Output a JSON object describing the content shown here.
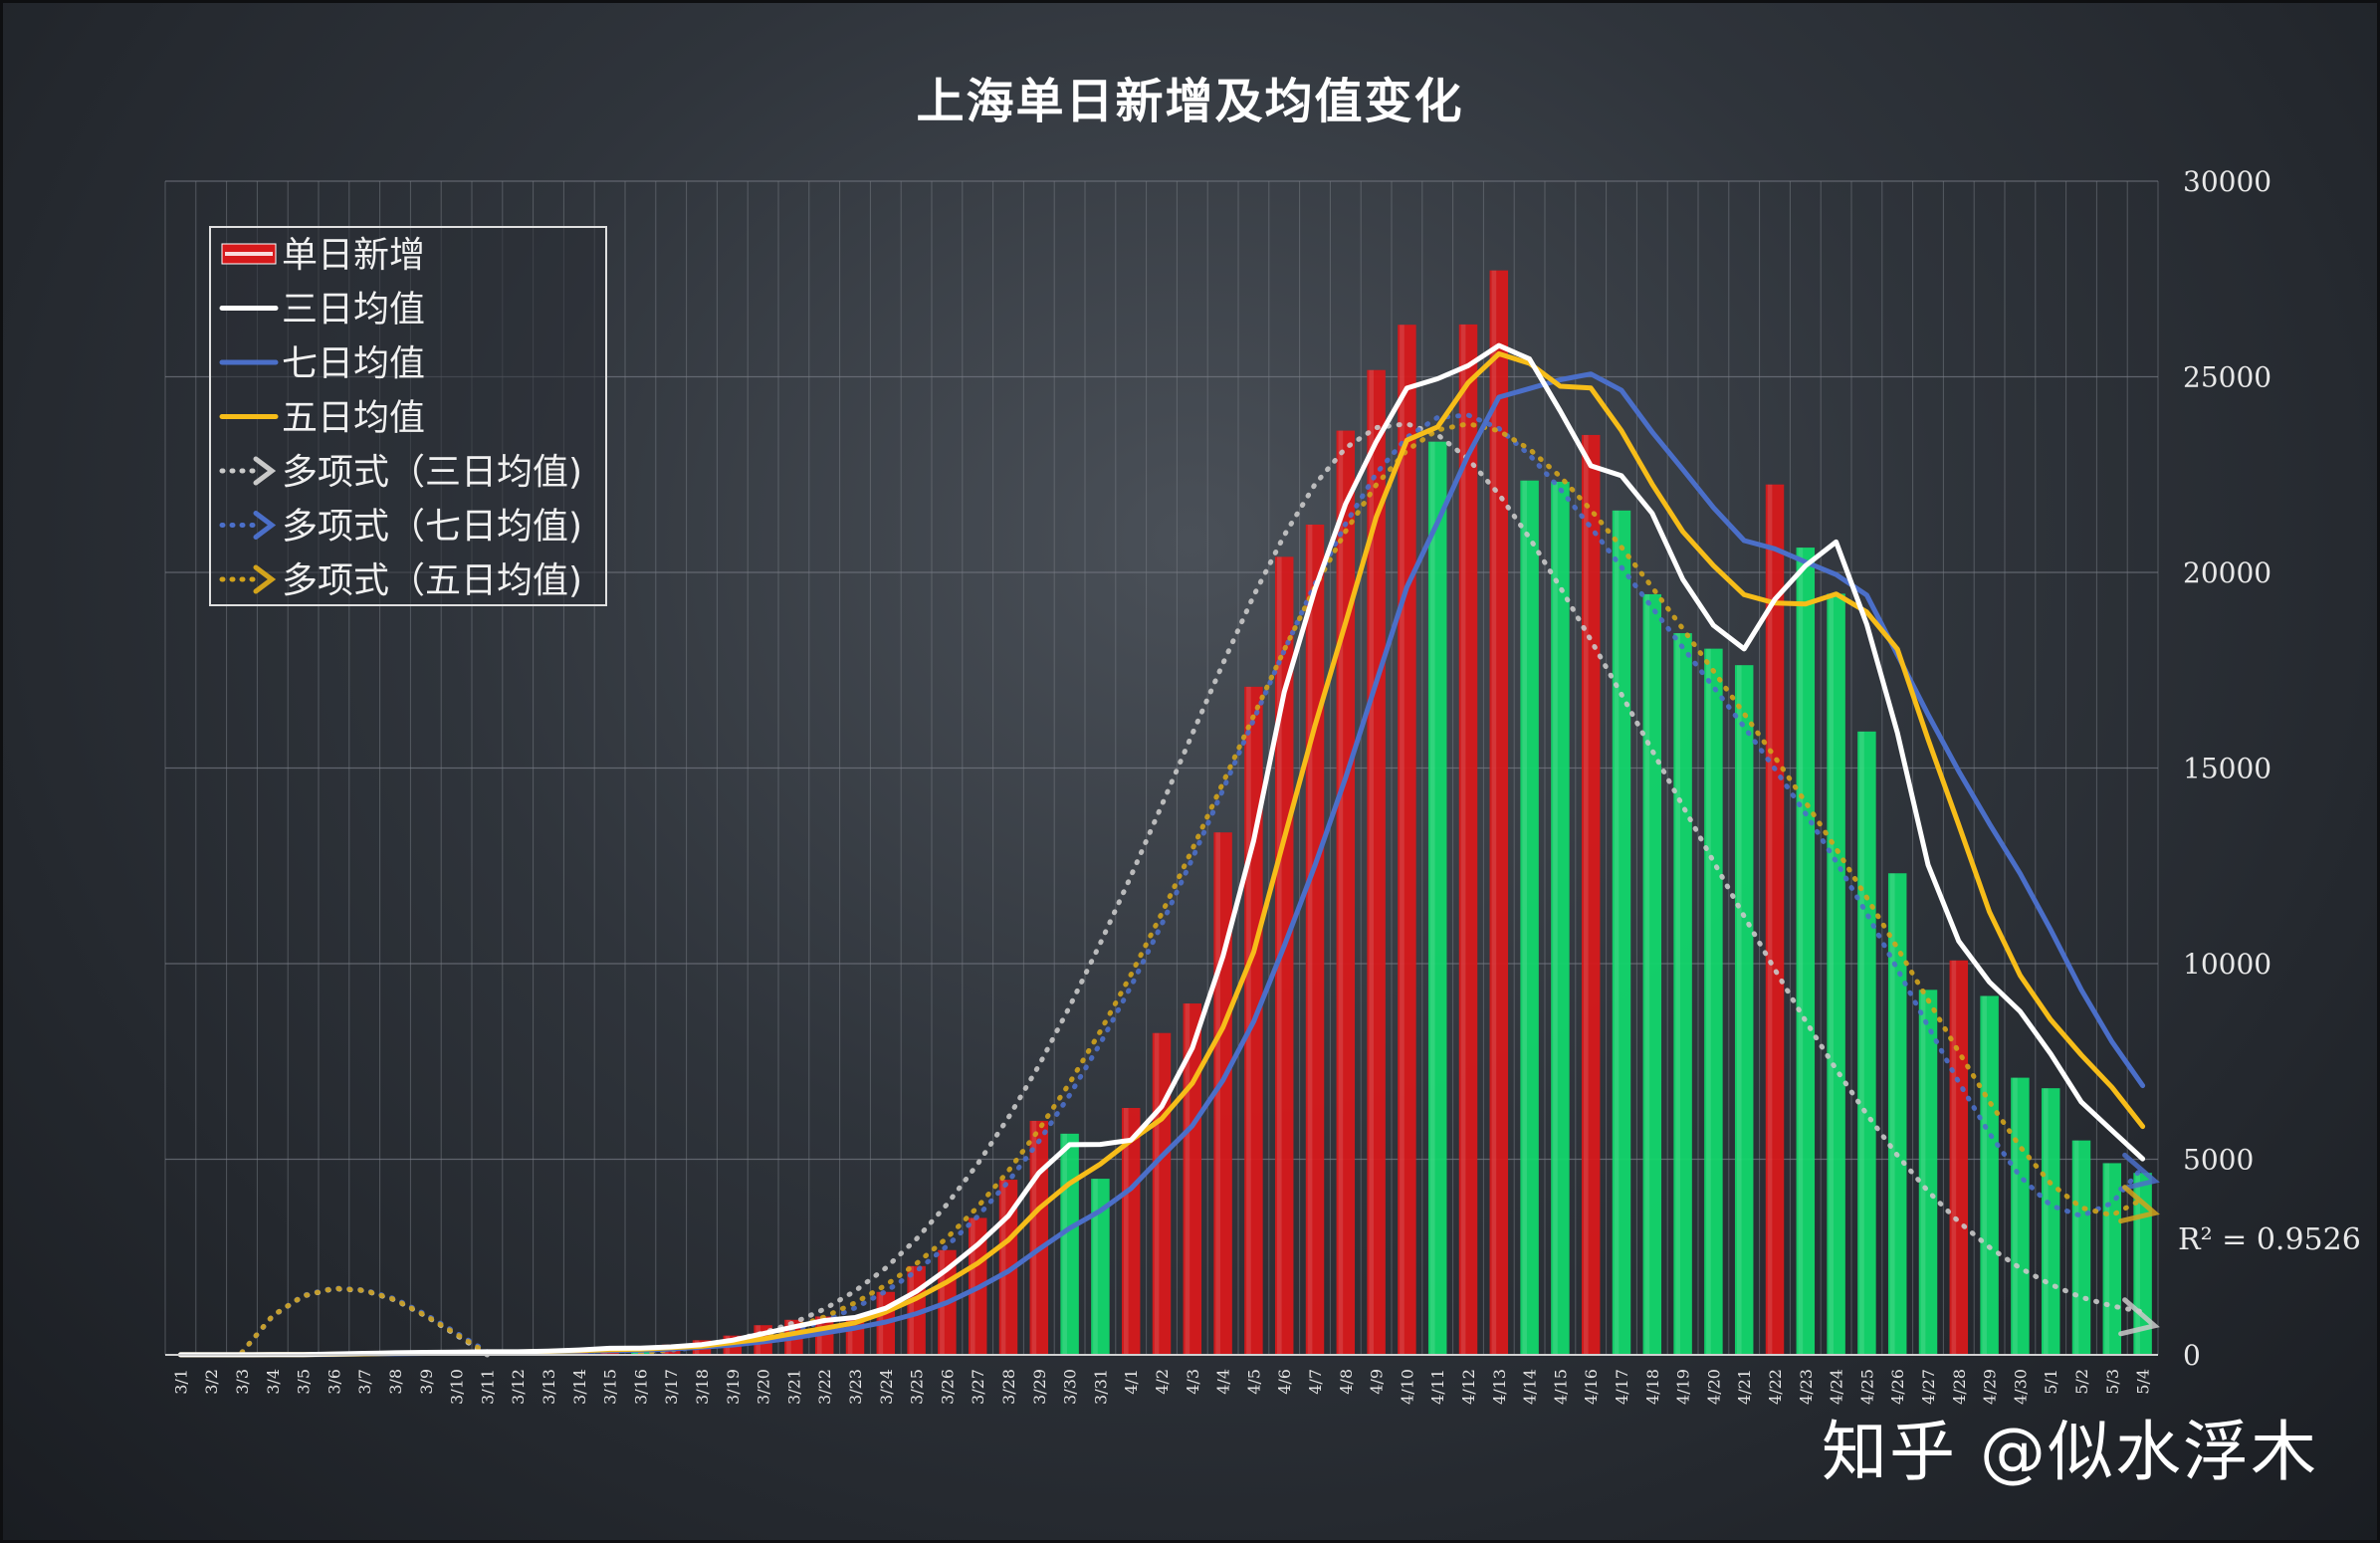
{
  "title": "上海单日新增及均值变化",
  "watermark": "知乎 @似水浮木",
  "r_squared": "R² = 0.9526",
  "colors": {
    "bar_up": "#d7191b",
    "bar_down": "#12d66b",
    "avg3": "#ffffff",
    "avg7": "#4b6fc9",
    "avg5": "#f7bd19",
    "poly3": "#c9c9c9",
    "poly7": "#4b6fc9",
    "poly5": "#d2a31c",
    "grid": "#767b84"
  },
  "legend": [
    {
      "label": "单日新增",
      "kind": "bar",
      "color": "#d7191b"
    },
    {
      "label": "三日均值",
      "kind": "line",
      "color": "#ffffff"
    },
    {
      "label": "七日均值",
      "kind": "line",
      "color": "#4b6fc9"
    },
    {
      "label": "五日均值",
      "kind": "line",
      "color": "#f7bd19"
    },
    {
      "label": "多项式（三日均值)",
      "kind": "dotted",
      "color": "#c9c9c9"
    },
    {
      "label": "多项式（七日均值)",
      "kind": "dotted",
      "color": "#4b6fc9"
    },
    {
      "label": "多项式（五日均值)",
      "kind": "dotted",
      "color": "#d2a31c"
    }
  ],
  "chart_data": {
    "type": "bar",
    "title": "上海单日新增及均值变化",
    "xlabel": "",
    "ylabel": "",
    "ylim": [
      0,
      30000
    ],
    "yticks": [
      0,
      5000,
      10000,
      15000,
      20000,
      25000,
      30000
    ],
    "y_axis_side": "right",
    "grid": true,
    "legend_position": "top-left",
    "categories": [
      "3/1",
      "3/2",
      "3/3",
      "3/4",
      "3/5",
      "3/6",
      "3/7",
      "3/8",
      "3/9",
      "3/10",
      "3/11",
      "3/12",
      "3/13",
      "3/14",
      "3/15",
      "3/16",
      "3/17",
      "3/18",
      "3/19",
      "3/20",
      "3/21",
      "3/22",
      "3/23",
      "3/24",
      "3/25",
      "3/26",
      "3/27",
      "3/28",
      "3/29",
      "3/30",
      "3/31",
      "4/1",
      "4/2",
      "4/3",
      "4/4",
      "4/5",
      "4/6",
      "4/7",
      "4/8",
      "4/9",
      "4/10",
      "4/11",
      "4/12",
      "4/13",
      "4/14",
      "4/15",
      "4/16",
      "4/17",
      "4/18",
      "4/19",
      "4/20",
      "4/21",
      "4/22",
      "4/23",
      "4/24",
      "4/25",
      "4/26",
      "4/27",
      "4/28",
      "4/29",
      "4/30",
      "5/1",
      "5/2",
      "5/3",
      "5/4"
    ],
    "series": [
      {
        "name": "单日新增",
        "type": "bar",
        "values": [
          2,
          3,
          3,
          5,
          16,
          45,
          55,
          62,
          76,
          75,
          83,
          76,
          130,
          169,
          202,
          150,
          260,
          374,
          492,
          758,
          896,
          981,
          983,
          1609,
          2269,
          2678,
          3500,
          4477,
          5982,
          5653,
          4502,
          6311,
          8226,
          8981,
          13354,
          17077,
          20398,
          21222,
          23624,
          25173,
          26330,
          23342,
          26338,
          27719,
          22348,
          22317,
          23513,
          21582,
          19442,
          18446,
          18050,
          17629,
          22247,
          20634,
          19455,
          15933,
          12309,
          9330,
          10082,
          9174,
          7084,
          6815,
          5480,
          4900,
          4651
        ],
        "colors_by_trend": "red when greater than previous day, green when lower"
      },
      {
        "name": "三日均值",
        "type": "line",
        "values": [
          3,
          3,
          3,
          4,
          8,
          22,
          39,
          54,
          64,
          71,
          78,
          78,
          96,
          125,
          167,
          174,
          204,
          261,
          375,
          541,
          715,
          878,
          953,
          1191,
          1620,
          2185,
          2816,
          3552,
          4653,
          5371,
          5379,
          5489,
          6346,
          7839,
          10187,
          13137,
          16943,
          19566,
          21748,
          23340,
          24709,
          24948,
          25284,
          25800,
          25456,
          24128,
          22726,
          22471,
          21512,
          19823,
          18646,
          18042,
          19309,
          20170,
          20779,
          18674,
          15899,
          12524,
          10574,
          9529,
          8780,
          7691,
          6460,
          5732,
          5010
        ]
      },
      {
        "name": "七日均值",
        "type": "line",
        "values": [
          2,
          2,
          3,
          4,
          5,
          10,
          18,
          27,
          38,
          48,
          58,
          67,
          79,
          91,
          106,
          119,
          150,
          196,
          252,
          334,
          435,
          559,
          684,
          840,
          1054,
          1335,
          1711,
          2138,
          2700,
          3236,
          3681,
          4253,
          5071,
          5854,
          7019,
          8513,
          10454,
          12510,
          14751,
          17191,
          19626,
          21279,
          23003,
          24478,
          24699,
          24924,
          25071,
          24655,
          23591,
          22631,
          21657,
          20815,
          20604,
          20268,
          19945,
          19421,
          17893,
          16367,
          14918,
          13577,
          12305,
          10862,
          9329,
          8000,
          6880
        ]
      },
      {
        "name": "五日均值",
        "type": "line",
        "values": [
          2,
          2,
          3,
          4,
          6,
          14,
          25,
          37,
          51,
          63,
          70,
          74,
          88,
          107,
          132,
          145,
          182,
          221,
          316,
          407,
          544,
          680,
          819,
          1095,
          1446,
          1862,
          2340,
          2934,
          3741,
          4384,
          4876,
          5484,
          6034,
          6938,
          8367,
          10290,
          13202,
          16079,
          18713,
          21414,
          23379,
          23718,
          24849,
          25589,
          25344,
          24757,
          24712,
          23622,
          22256,
          21044,
          20174,
          19429,
          19216,
          19194,
          19447,
          18987,
          18039,
          15733,
          13547,
          11325,
          9702,
          8564,
          7664,
          6838,
          5836
        ]
      },
      {
        "name": "多项式（三日均值)",
        "type": "poly_trend",
        "values": [
          -4800,
          -1470,
          60,
          990,
          1500,
          1690,
          1640,
          1400,
          990,
          500,
          0,
          -250,
          -280,
          -190,
          -60,
          50,
          150,
          250,
          380,
          560,
          820,
          1170,
          1630,
          2220,
          2960,
          3850,
          4880,
          6060,
          7400,
          8900,
          10520,
          12240,
          14040,
          15870,
          17670,
          19400,
          20950,
          22250,
          23180,
          23700,
          23800,
          23520,
          22900,
          22000,
          20880,
          19620,
          18270,
          16880,
          15450,
          14030,
          12610,
          11210,
          9850,
          8540,
          7300,
          6150,
          5100,
          4180,
          3400,
          2750,
          2220,
          1800,
          1470,
          1250,
          1100
        ],
        "note": "polynomial trend fitted to 三日均值, dotted, with arrow"
      },
      {
        "name": "多项式（七日均值)",
        "type": "poly_trend",
        "values": [
          -4600,
          -1400,
          60,
          1000,
          1520,
          1710,
          1660,
          1430,
          1030,
          560,
          80,
          -170,
          -230,
          -170,
          -60,
          40,
          120,
          200,
          300,
          440,
          620,
          870,
          1200,
          1620,
          2140,
          2780,
          3540,
          4430,
          5460,
          6640,
          7960,
          9420,
          11000,
          12680,
          14440,
          16230,
          18000,
          19700,
          21240,
          22530,
          23450,
          23960,
          24020,
          23680,
          23000,
          22130,
          21150,
          20130,
          19100,
          18080,
          17070,
          16050,
          14980,
          13840,
          12610,
          11280,
          9860,
          8400,
          6970,
          5660,
          4560,
          3820,
          3550,
          3880,
          4800
        ],
        "note": "polynomial trend fitted to 七日均值, dotted, with arrow"
      },
      {
        "name": "多项式（五日均值)",
        "type": "poly_trend",
        "values": [
          -4700,
          -1430,
          60,
          1000,
          1510,
          1700,
          1650,
          1410,
          1000,
          530,
          40,
          -200,
          -250,
          -180,
          -60,
          50,
          130,
          220,
          330,
          490,
          700,
          970,
          1330,
          1780,
          2330,
          2990,
          3780,
          4700,
          5760,
          6950,
          8270,
          9720,
          11280,
          12920,
          14620,
          16330,
          18020,
          19620,
          21050,
          22240,
          23120,
          23640,
          23800,
          23620,
          23150,
          22450,
          21600,
          20640,
          19620,
          18560,
          17480,
          16390,
          15280,
          14130,
          12940,
          11690,
          10400,
          9070,
          7740,
          6470,
          5320,
          4380,
          3760,
          3570,
          3980
        ],
        "note": "polynomial trend fitted to 五日均值, dotted, with arrow"
      }
    ]
  }
}
